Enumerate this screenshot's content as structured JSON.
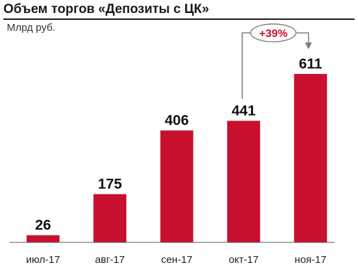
{
  "title": "Объем торгов «Депозиты с ЦК»",
  "unit": "Млрд руб.",
  "colors": {
    "bar": "#c8102e",
    "growth_text": "#c8102e",
    "connector": "#7f7f7f",
    "axis": "#555555"
  },
  "chart_data": {
    "type": "bar",
    "title": "Объем торгов «Депозиты с ЦК»",
    "ylabel": "Млрд руб.",
    "xlabel": "",
    "categories": [
      "июл-17",
      "авг-17",
      "сен-17",
      "окт-17",
      "ноя-17"
    ],
    "values": [
      26,
      175,
      406,
      441,
      611
    ],
    "ylim": [
      0,
      700
    ],
    "grid": false,
    "annotation": {
      "text": "+39%",
      "from": "окт-17",
      "to": "ноя-17"
    }
  }
}
